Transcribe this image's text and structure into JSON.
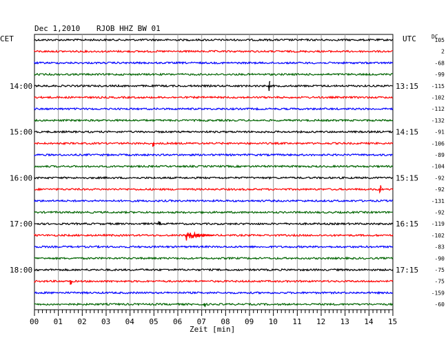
{
  "header": {
    "date": "Dec 1,2010",
    "station": "RJOB HHZ BW 01",
    "left_tz": "CET",
    "right_tz": "UTC",
    "dc_label": "DC"
  },
  "xaxis": {
    "label": "Zeit [min]",
    "ticks": [
      "00",
      "01",
      "02",
      "03",
      "04",
      "05",
      "06",
      "07",
      "08",
      "09",
      "10",
      "11",
      "12",
      "13",
      "14",
      "15"
    ]
  },
  "chart_data": {
    "type": "line",
    "title": "Dec 1,2010  RJOB HHZ BW 01",
    "xlabel": "Zeit [min]",
    "xlim": [
      0,
      15
    ],
    "grid": true,
    "trace_colors": [
      "#000000",
      "#ff0000",
      "#0000ff",
      "#006400"
    ],
    "left_hour_labels": [
      {
        "row": 4,
        "text": "14:00"
      },
      {
        "row": 8,
        "text": "15:00"
      },
      {
        "row": 12,
        "text": "16:00"
      },
      {
        "row": 16,
        "text": "17:00"
      },
      {
        "row": 20,
        "text": "18:00"
      }
    ],
    "right_hour_labels": [
      {
        "row": 4,
        "text": "13:15"
      },
      {
        "row": 8,
        "text": "14:15"
      },
      {
        "row": 12,
        "text": "15:15"
      },
      {
        "row": 16,
        "text": "16:15"
      },
      {
        "row": 20,
        "text": "17:15"
      }
    ],
    "dc_offsets": [
      "105",
      "2",
      "-68",
      "-99",
      "-115",
      "-102",
      "-112",
      "-132",
      "-91",
      "-106",
      "-89",
      "-104",
      "-92",
      "-92",
      "-131",
      "-92",
      "-119",
      "-102",
      "-83",
      "-90",
      "-75",
      "-75",
      "-159",
      "-60"
    ],
    "events": [
      {
        "row": 4,
        "minute": 9.8,
        "amp": 8
      },
      {
        "row": 9,
        "minute": 4.95,
        "amp": 5
      },
      {
        "row": 13,
        "minute": 14.45,
        "amp": 6
      },
      {
        "row": 16,
        "minute": 5.2,
        "amp": 4
      },
      {
        "row": 17,
        "minute": 6.3,
        "amp": 9,
        "duration": 1.2
      },
      {
        "row": 21,
        "minute": 1.5,
        "amp": 6
      },
      {
        "row": 23,
        "minute": 7.1,
        "amp": 3
      }
    ]
  }
}
